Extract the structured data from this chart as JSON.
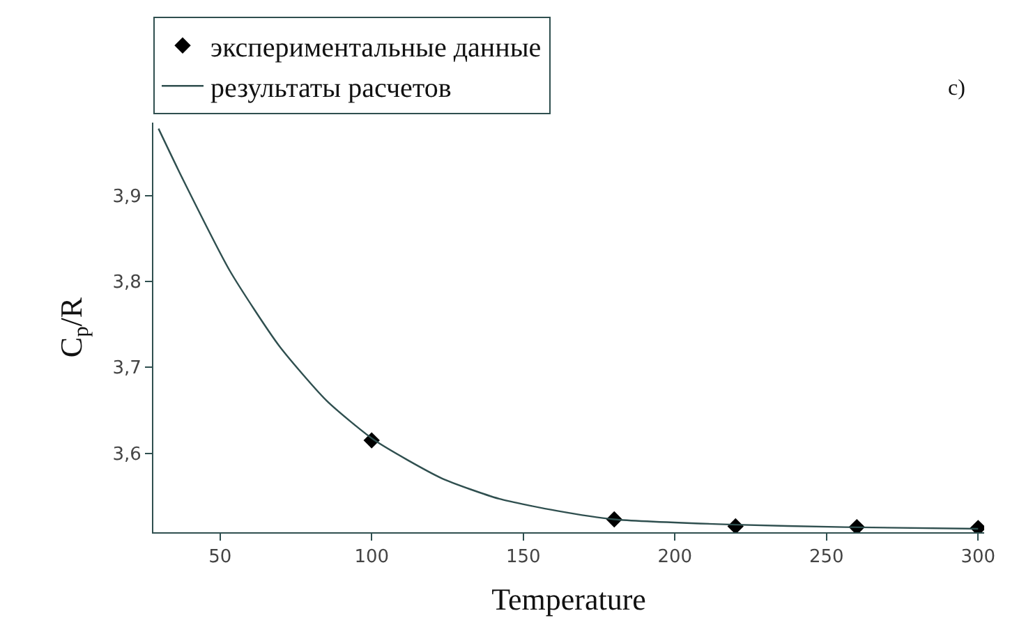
{
  "chart_data": {
    "type": "line",
    "xlabel": "Temperature",
    "ylabel": "C$_{p}$/R",
    "xlim": [
      28,
      302
    ],
    "ylim": [
      3.508,
      3.985
    ],
    "xticks": [
      50,
      100,
      150,
      200,
      250,
      300
    ],
    "yticks": [
      {
        "value": 3.6,
        "label": "3,6"
      },
      {
        "value": 3.7,
        "label": "3,7"
      },
      {
        "value": 3.8,
        "label": "3,8"
      },
      {
        "value": 3.9,
        "label": "3,9"
      }
    ],
    "legend": "top",
    "annotations": [
      "c)"
    ],
    "series": [
      {
        "name": "экспериментальные данные",
        "type": "scatter",
        "marker": "diamond",
        "color": "#000000",
        "x": [
          100,
          180,
          220,
          260,
          300
        ],
        "values": [
          3.615,
          3.523,
          3.515,
          3.514,
          3.513
        ]
      },
      {
        "name": "результаты расчетов",
        "marker": "none",
        "color": "#2f4f4f",
        "x": [
          29.7,
          37.6,
          53.3,
          69.5,
          85.2,
          101,
          123,
          142,
          161,
          180,
          218,
          256,
          300
        ],
        "values": [
          3.978,
          3.92,
          3.812,
          3.725,
          3.661,
          3.615,
          3.571,
          3.547,
          3.533,
          3.523,
          3.517,
          3.514,
          3.512
        ]
      }
    ]
  }
}
